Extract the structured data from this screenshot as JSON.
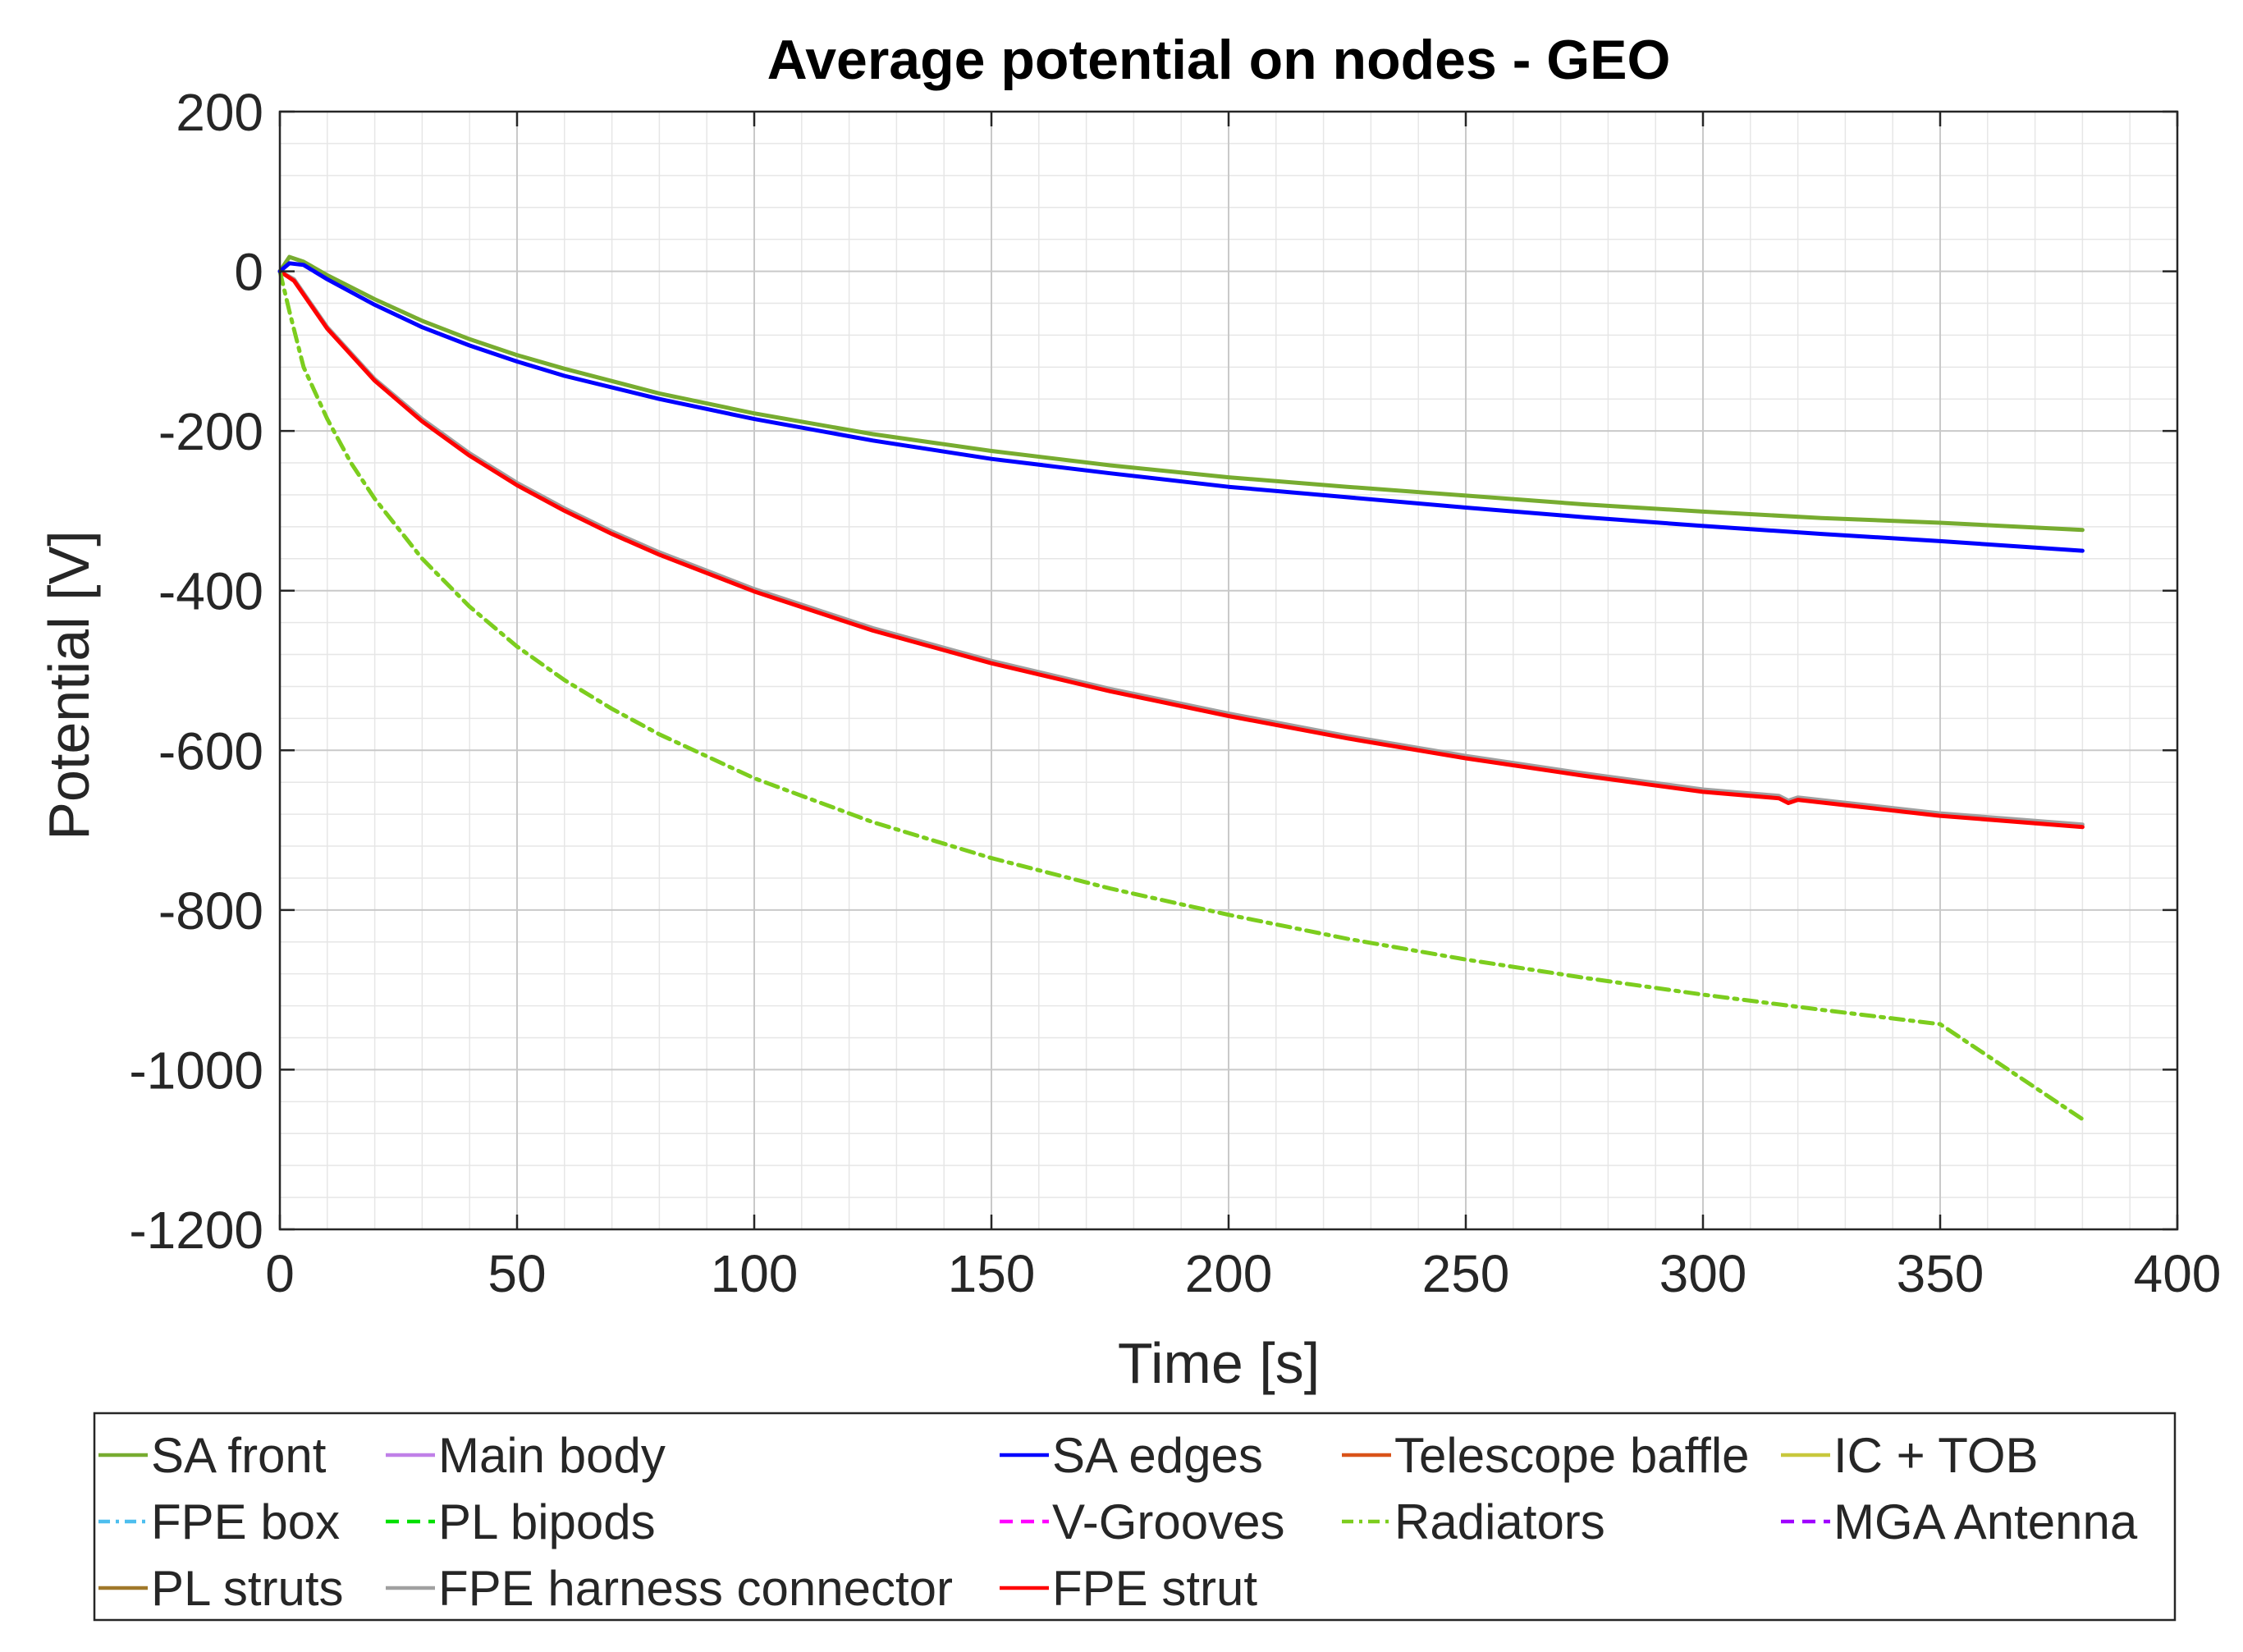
{
  "chart_data": {
    "type": "line",
    "title": "Average potential on nodes - GEO",
    "xlabel": "Time [s]",
    "ylabel": "Potential [V]",
    "xlim": [
      0,
      400
    ],
    "ylim": [
      -1200,
      200
    ],
    "x_ticks": [
      0,
      50,
      100,
      150,
      200,
      250,
      300,
      350,
      400
    ],
    "y_ticks": [
      200,
      0,
      -200,
      -400,
      -600,
      -800,
      -1000,
      -1200
    ],
    "x_tick_labels": [
      "0",
      "50",
      "100",
      "150",
      "200",
      "250",
      "300",
      "350",
      "400"
    ],
    "y_tick_labels": [
      "200",
      "0",
      "-200",
      "-400",
      "-600",
      "-800",
      "-1000",
      "-1200"
    ],
    "grid": true,
    "minor_grid": true,
    "legend_placement": "bottom",
    "legend_columns": 5,
    "series": [
      {
        "name": "SA front",
        "color": "#77ac30",
        "dash": "solid",
        "x": [
          0,
          2,
          5,
          10,
          20,
          30,
          40,
          50,
          60,
          80,
          100,
          125,
          150,
          175,
          200,
          225,
          250,
          275,
          300,
          325,
          350,
          380
        ],
        "y": [
          0,
          18,
          12,
          -5,
          -35,
          -62,
          -85,
          -105,
          -122,
          -153,
          -178,
          -204,
          -225,
          -243,
          -258,
          -270,
          -281,
          -292,
          -301,
          -309,
          -315,
          -324
        ]
      },
      {
        "name": "Main body",
        "color": "#c080e8",
        "dash": "solid",
        "x": [],
        "y": []
      },
      {
        "name": "SA edges",
        "color": "#0000ff",
        "dash": "solid",
        "x": [
          0,
          2,
          5,
          10,
          20,
          30,
          40,
          50,
          60,
          80,
          100,
          125,
          150,
          175,
          200,
          225,
          250,
          275,
          300,
          325,
          350,
          380
        ],
        "y": [
          0,
          10,
          8,
          -10,
          -42,
          -70,
          -93,
          -113,
          -131,
          -160,
          -185,
          -212,
          -235,
          -253,
          -270,
          -283,
          -296,
          -308,
          -319,
          -329,
          -338,
          -350
        ]
      },
      {
        "name": "Telescope baffle",
        "color": "#d95319",
        "dash": "solid",
        "x": [],
        "y": []
      },
      {
        "name": "IC + TOB",
        "color": "#c8c83c",
        "dash": "solid",
        "x": [],
        "y": []
      },
      {
        "name": "FPE box",
        "color": "#4dbeee",
        "dash": "dashdot",
        "x": [],
        "y": []
      },
      {
        "name": "PL bipods",
        "color": "#00e000",
        "dash": "dashed",
        "x": [],
        "y": []
      },
      {
        "name": "V-Grooves",
        "color": "#ff00ff",
        "dash": "dashed",
        "x": [],
        "y": []
      },
      {
        "name": "Radiators",
        "color": "#7ccd1e",
        "dash": "dashdot",
        "x": [
          0,
          2,
          5,
          10,
          15,
          20,
          30,
          40,
          50,
          60,
          70,
          80,
          100,
          125,
          150,
          175,
          200,
          225,
          250,
          275,
          300,
          325,
          350,
          380
        ],
        "y": [
          0,
          -50,
          -120,
          -185,
          -240,
          -285,
          -360,
          -420,
          -470,
          -512,
          -548,
          -580,
          -635,
          -690,
          -735,
          -773,
          -806,
          -836,
          -862,
          -885,
          -906,
          -925,
          -943,
          -1062
        ]
      },
      {
        "name": "MGA Antenna",
        "color": "#a000ff",
        "dash": "dashed",
        "x": [],
        "y": []
      },
      {
        "name": "PL struts",
        "color": "#a0782a",
        "dash": "solid",
        "x": [],
        "y": []
      },
      {
        "name": "FPE harness connector",
        "color": "#a0a0a0",
        "dash": "solid",
        "x": [
          0,
          3,
          10,
          20,
          30,
          40,
          50,
          60,
          70,
          80,
          100,
          125,
          150,
          175,
          200,
          225,
          250,
          275,
          300,
          316,
          318,
          320,
          350,
          380
        ],
        "y": [
          0,
          -10,
          -70,
          -135,
          -185,
          -228,
          -265,
          -297,
          -326,
          -352,
          -398,
          -447,
          -488,
          -523,
          -554,
          -582,
          -607,
          -629,
          -649,
          -657,
          -663,
          -659,
          -679,
          -693
        ]
      },
      {
        "name": "FPE strut",
        "color": "#ff0000",
        "dash": "solid",
        "x": [
          0,
          3,
          10,
          20,
          30,
          40,
          50,
          60,
          70,
          80,
          100,
          125,
          150,
          175,
          200,
          225,
          250,
          275,
          300,
          316,
          318,
          320,
          350,
          380
        ],
        "y": [
          0,
          -12,
          -72,
          -137,
          -188,
          -231,
          -268,
          -300,
          -329,
          -355,
          -401,
          -450,
          -491,
          -526,
          -557,
          -585,
          -610,
          -632,
          -652,
          -660,
          -666,
          -662,
          -682,
          -696
        ]
      }
    ]
  }
}
